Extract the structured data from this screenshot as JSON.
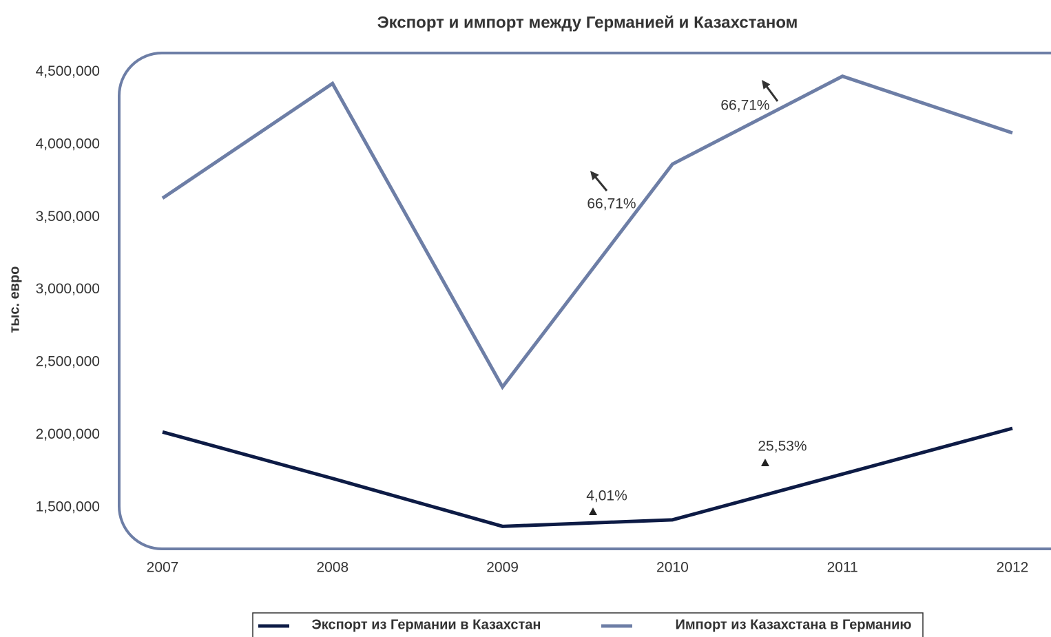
{
  "chart_data": {
    "type": "line",
    "title": "Экспорт и импорт между Германией и Казахстаном",
    "y_label": "тыс. евро",
    "categories": [
      "2007",
      "2008",
      "2009",
      "2010",
      "2011",
      "2012"
    ],
    "series": [
      {
        "name": "Экспорт из Германии в Казахстан",
        "color": "#0d1b45",
        "values": [
          2020000,
          1700000,
          1370000,
          1415000,
          1730000,
          2045000
        ]
      },
      {
        "name": "Импорт из Казахстана в  Германию",
        "color": "#6d7ea6",
        "values": [
          3630000,
          4420000,
          2330000,
          3865000,
          4470000,
          4080000
        ]
      }
    ],
    "ylim": [
      1215000,
      4630000
    ],
    "yticks": [
      {
        "value": 1500000,
        "label": "1,500,000"
      },
      {
        "value": 2000000,
        "label": "2,000,000"
      },
      {
        "value": 2500000,
        "label": "2,500,000"
      },
      {
        "value": 3000000,
        "label": "3,000,000"
      },
      {
        "value": 3500000,
        "label": "3,500,000"
      },
      {
        "value": 4000000,
        "label": "4,000,000"
      },
      {
        "value": 4500000,
        "label": "4,500,000"
      }
    ],
    "grid": false,
    "legend": "bottom",
    "annotations": [
      {
        "text": "66,71%"
      },
      {
        "text": "66,71%"
      },
      {
        "text": "4,01%"
      },
      {
        "text": "25,53%"
      }
    ]
  }
}
